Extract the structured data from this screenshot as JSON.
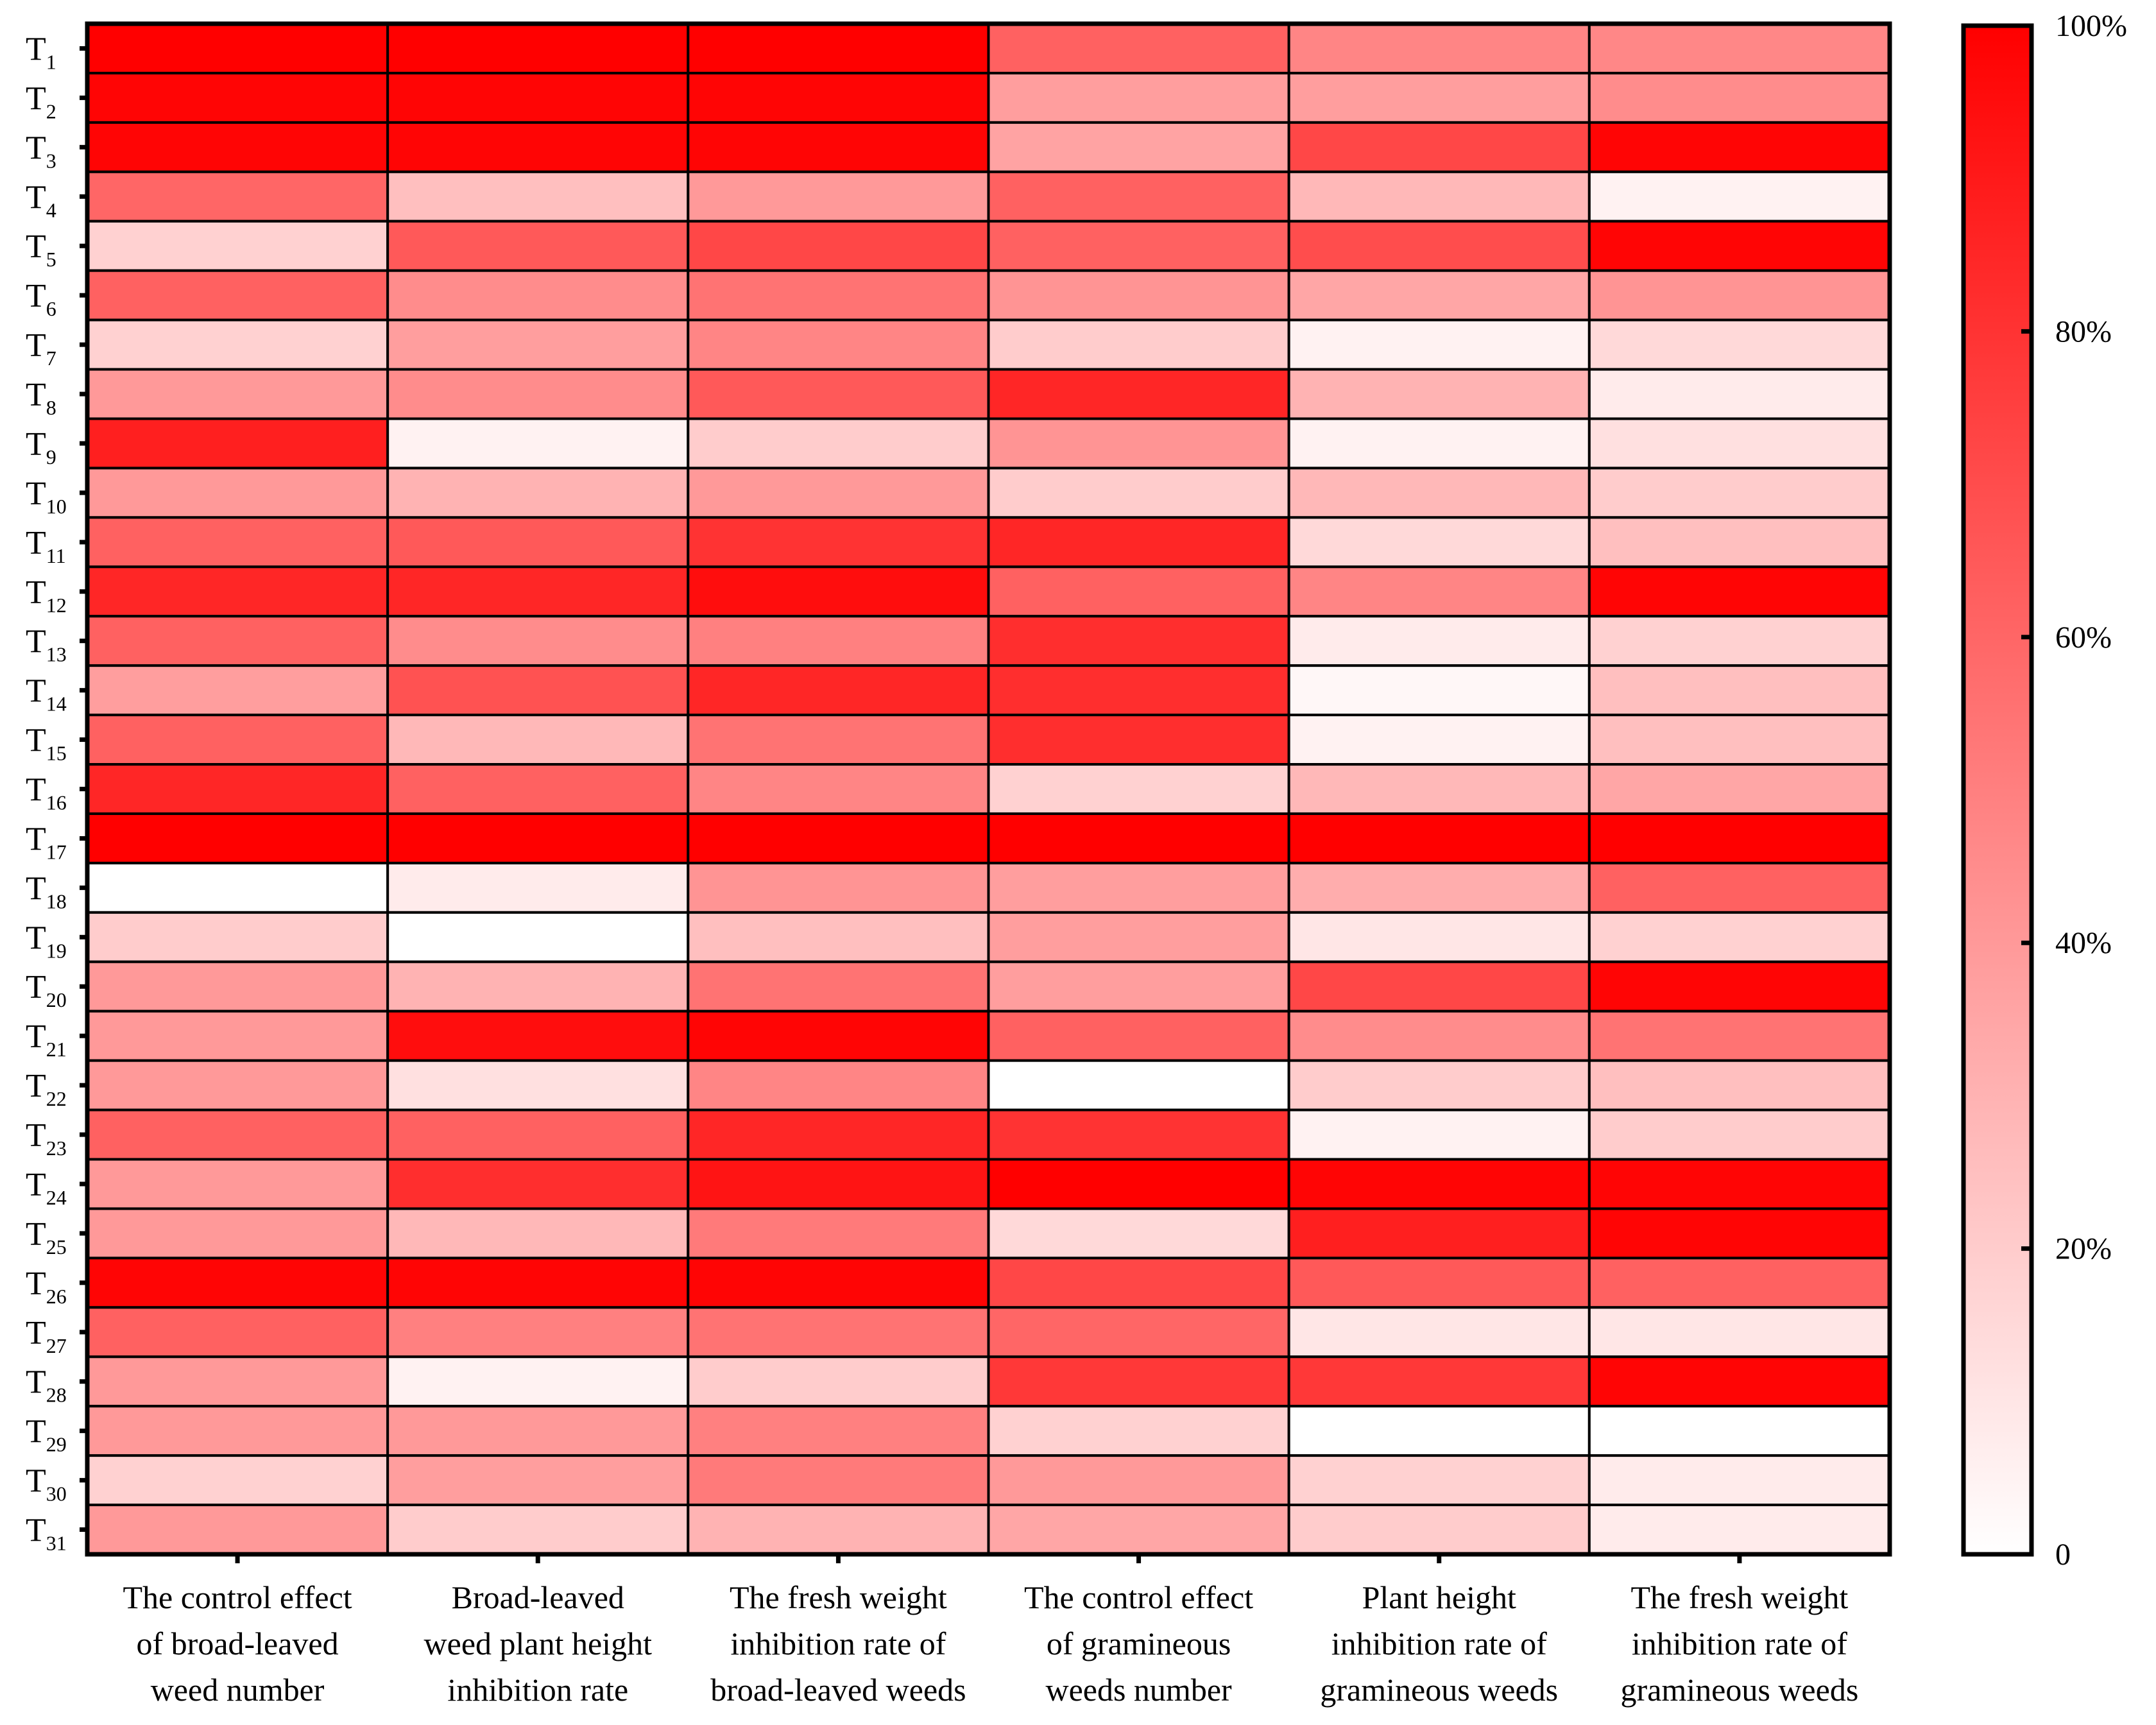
{
  "chart_data": {
    "type": "heatmap",
    "title": "",
    "rows": [
      {
        "letter": "T",
        "index": "1"
      },
      {
        "letter": "T",
        "index": "2"
      },
      {
        "letter": "T",
        "index": "3"
      },
      {
        "letter": "T",
        "index": "4"
      },
      {
        "letter": "T",
        "index": "5"
      },
      {
        "letter": "T",
        "index": "6"
      },
      {
        "letter": "T",
        "index": "7"
      },
      {
        "letter": "T",
        "index": "8"
      },
      {
        "letter": "T",
        "index": "9"
      },
      {
        "letter": "T",
        "index": "10"
      },
      {
        "letter": "T",
        "index": "11"
      },
      {
        "letter": "T",
        "index": "12"
      },
      {
        "letter": "T",
        "index": "13"
      },
      {
        "letter": "T",
        "index": "14"
      },
      {
        "letter": "T",
        "index": "15"
      },
      {
        "letter": "T",
        "index": "16"
      },
      {
        "letter": "T",
        "index": "17"
      },
      {
        "letter": "T",
        "index": "18"
      },
      {
        "letter": "T",
        "index": "19"
      },
      {
        "letter": "T",
        "index": "20"
      },
      {
        "letter": "T",
        "index": "21"
      },
      {
        "letter": "T",
        "index": "22"
      },
      {
        "letter": "T",
        "index": "23"
      },
      {
        "letter": "T",
        "index": "24"
      },
      {
        "letter": "T",
        "index": "25"
      },
      {
        "letter": "T",
        "index": "26"
      },
      {
        "letter": "T",
        "index": "27"
      },
      {
        "letter": "T",
        "index": "28"
      },
      {
        "letter": "T",
        "index": "29"
      },
      {
        "letter": "T",
        "index": "30"
      },
      {
        "letter": "T",
        "index": "31"
      }
    ],
    "columns": [
      [
        "The control effect",
        "of broad-leaved",
        "weed number"
      ],
      [
        "Broad-leaved",
        "weed plant height",
        "inhibition rate"
      ],
      [
        "The fresh weight",
        "inhibition rate of",
        "broad-leaved weeds"
      ],
      [
        "The control effect",
        "of gramineous",
        "weeds number"
      ],
      [
        "Plant height",
        "inhibition rate of",
        "gramineous weeds"
      ],
      [
        "The fresh weight",
        "inhibition rate of",
        "gramineous weeds"
      ]
    ],
    "values": [
      [
        100,
        100,
        100,
        62,
        48,
        47
      ],
      [
        98,
        98,
        98,
        38,
        38,
        45
      ],
      [
        98,
        98,
        98,
        36,
        72,
        98
      ],
      [
        60,
        25,
        40,
        62,
        28,
        5
      ],
      [
        18,
        65,
        72,
        62,
        70,
        98
      ],
      [
        62,
        45,
        55,
        42,
        35,
        42
      ],
      [
        18,
        38,
        48,
        20,
        5,
        15
      ],
      [
        40,
        45,
        65,
        85,
        30,
        8
      ],
      [
        88,
        5,
        20,
        42,
        5,
        12
      ],
      [
        40,
        30,
        40,
        20,
        28,
        20
      ],
      [
        62,
        65,
        80,
        85,
        15,
        25
      ],
      [
        85,
        85,
        95,
        62,
        48,
        98
      ],
      [
        62,
        45,
        50,
        82,
        8,
        18
      ],
      [
        38,
        68,
        85,
        82,
        3,
        25
      ],
      [
        62,
        28,
        55,
        82,
        5,
        25
      ],
      [
        85,
        62,
        48,
        18,
        28,
        35
      ],
      [
        100,
        100,
        100,
        100,
        100,
        100
      ],
      [
        0,
        8,
        42,
        38,
        32,
        62
      ],
      [
        20,
        0,
        25,
        38,
        10,
        18
      ],
      [
        40,
        30,
        55,
        38,
        72,
        98
      ],
      [
        40,
        95,
        98,
        62,
        45,
        55
      ],
      [
        40,
        12,
        48,
        0,
        20,
        25
      ],
      [
        62,
        62,
        85,
        80,
        5,
        20
      ],
      [
        40,
        82,
        92,
        100,
        98,
        98
      ],
      [
        40,
        28,
        52,
        15,
        88,
        98
      ],
      [
        98,
        98,
        98,
        72,
        65,
        62
      ],
      [
        62,
        50,
        55,
        60,
        10,
        10
      ],
      [
        40,
        5,
        20,
        78,
        78,
        98
      ],
      [
        40,
        40,
        50,
        18,
        0,
        0
      ],
      [
        18,
        38,
        52,
        40,
        18,
        8
      ],
      [
        40,
        20,
        30,
        35,
        20,
        8
      ]
    ],
    "zlim": [
      0,
      100
    ],
    "colorbar_ticks": [
      0,
      20,
      40,
      60,
      80,
      100
    ],
    "colorbar_labels": [
      "0",
      "20%",
      "40%",
      "60%",
      "80%",
      "100%"
    ],
    "color_low": "#ffffff",
    "color_high": "#ff0000",
    "legend_position": "right",
    "grid": true
  }
}
